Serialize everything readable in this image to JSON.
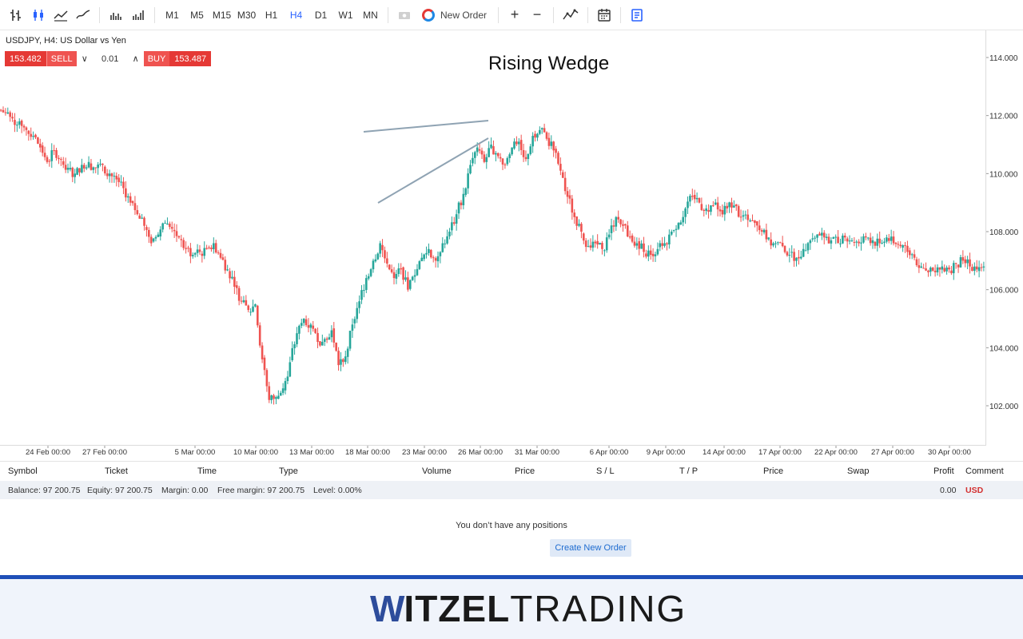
{
  "toolbar": {
    "timeframes": [
      "M1",
      "M5",
      "M15",
      "M30",
      "H1",
      "H4",
      "D1",
      "W1",
      "MN"
    ],
    "active_timeframe": "H4",
    "new_order_label": "New Order",
    "zoom_in": "+",
    "zoom_out": "−"
  },
  "chart": {
    "symbol_title": "USDJPY, H4: US Dollar vs Yen",
    "sell_price": "153.482",
    "sell_label": "SELL",
    "quantity": "0.01",
    "buy_label": "BUY",
    "buy_price": "153.487",
    "pattern_label": "Rising Wedge",
    "price_ticks": [
      "114.000",
      "112.000",
      "110.000",
      "108.000",
      "106.000",
      "104.000",
      "102.000"
    ],
    "date_ticks": [
      "24 Feb 00:00",
      "27 Feb 00:00",
      "5 Mar 00:00",
      "10 Mar 00:00",
      "13 Mar 00:00",
      "18 Mar 00:00",
      "23 Mar 00:00",
      "26 Mar 00:00",
      "31 Mar 00:00",
      "6 Apr 00:00",
      "9 Apr 00:00",
      "14 Apr 00:00",
      "17 Apr 00:00",
      "22 Apr 00:00",
      "27 Apr 00:00",
      "30 Apr 00:00"
    ],
    "up_color": "#26a69a",
    "down_color": "#ef5350",
    "wedge_color": "#8fa3b3"
  },
  "chart_data": {
    "type": "candlestick",
    "title": "Rising Wedge",
    "symbol": "USDJPY",
    "timeframe": "H4",
    "ylim": [
      101.2,
      115.0
    ],
    "close_path": [
      112.1,
      111.9,
      111.8,
      111.5,
      111.3,
      110.9,
      110.4,
      110.8,
      110.5,
      110.2,
      110.0,
      110.3,
      110.4,
      110.2,
      110.3,
      110.0,
      109.8,
      109.5,
      109.0,
      108.6,
      108.2,
      107.6,
      107.9,
      108.3,
      108.1,
      107.8,
      107.4,
      107.2,
      107.3,
      107.4,
      107.6,
      107.1,
      106.7,
      106.1,
      105.6,
      105.3,
      105.5,
      103.6,
      102.2,
      102.3,
      102.6,
      103.5,
      104.5,
      105.0,
      104.8,
      104.2,
      104.3,
      104.6,
      103.4,
      103.7,
      104.8,
      105.6,
      106.4,
      107.0,
      107.6,
      106.9,
      106.4,
      106.7,
      106.0,
      106.5,
      107.1,
      107.4,
      107.0,
      107.6,
      108.0,
      108.6,
      109.3,
      110.3,
      110.9,
      110.4,
      111.0,
      110.6,
      110.3,
      110.9,
      111.1,
      110.5,
      111.3,
      111.5,
      111.2,
      110.8,
      110.1,
      109.2,
      108.5,
      108.0,
      107.5,
      107.6,
      107.4,
      107.9,
      108.5,
      108.2,
      107.8,
      107.6,
      107.3,
      107.2,
      107.4,
      107.6,
      108.0,
      108.3,
      108.8,
      109.2,
      109.0,
      108.8,
      108.9,
      108.7,
      108.8,
      108.9,
      108.5,
      108.4,
      108.3,
      108.0,
      107.8,
      107.6,
      107.5,
      107.2,
      107.1,
      107.4,
      107.7,
      107.9,
      107.8,
      107.7,
      107.6,
      107.8,
      107.7,
      107.6,
      107.8,
      107.7,
      107.6,
      107.8,
      107.6,
      107.5,
      107.3,
      107.1,
      106.8,
      106.6,
      106.6,
      106.8,
      106.7,
      106.9,
      107.0,
      106.8,
      106.7,
      106.8
    ],
    "wedge_upper": [
      [
        455,
        165
      ],
      [
        611,
        151
      ]
    ],
    "wedge_lower": [
      [
        473,
        254
      ],
      [
        611,
        173
      ]
    ]
  },
  "positions": {
    "columns": [
      "Symbol",
      "Ticket",
      "Time",
      "Type",
      "Volume",
      "Price",
      "S / L",
      "T / P",
      "Price",
      "Swap",
      "Profit",
      "Comment"
    ],
    "balance": "Balance: 97 200.75",
    "equity": "Equity: 97 200.75",
    "margin": "Margin: 0.00",
    "free_margin": "Free margin: 97 200.75",
    "level": "Level: 0.00%",
    "profit_total": "0.00",
    "currency": "USD",
    "empty_message": "You don’t have any positions",
    "create_button": "Create New Order"
  },
  "footer": {
    "logo_w": "W",
    "logo_bold": "ITZEL",
    "logo_light": "TRADING"
  }
}
